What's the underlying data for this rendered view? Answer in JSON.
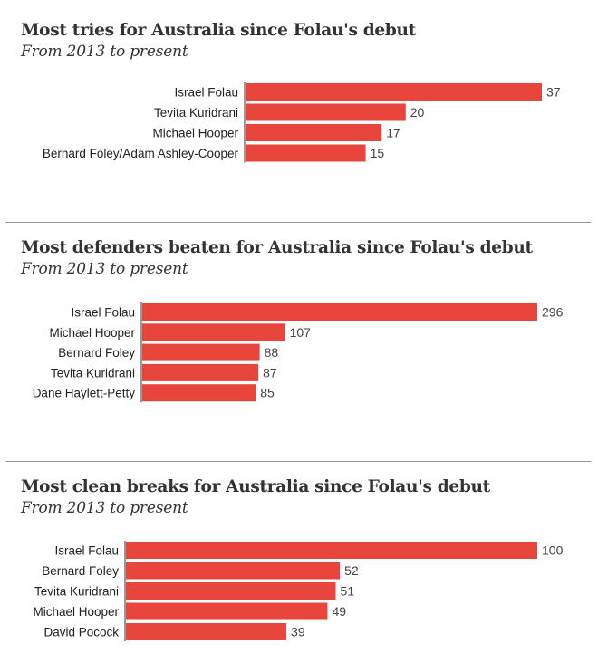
{
  "chart_data": [
    {
      "type": "bar",
      "orientation": "horizontal",
      "title": "Most tries for Australia since Folau's debut",
      "subtitle": "From 2013 to present",
      "categories": [
        "Israel Folau",
        "Tevita Kuridrani",
        "Michael Hooper",
        "Bernard Foley/Adam Ashley-Cooper"
      ],
      "values": [
        37,
        20,
        17,
        15
      ],
      "data_labels": [
        "37",
        "20",
        "17",
        "15"
      ],
      "xlim": [
        0,
        37
      ],
      "bar_color": "#e8453c",
      "grid": false
    },
    {
      "type": "bar",
      "orientation": "horizontal",
      "title": "Most defenders beaten for Australia since Folau's debut",
      "subtitle": "From 2013 to present",
      "categories": [
        "Israel Folau",
        "Michael Hooper",
        "Bernard Foley",
        "Tevita Kuridrani",
        "Dane Haylett-Petty"
      ],
      "values": [
        296,
        107,
        88,
        87,
        85
      ],
      "data_labels": [
        "296",
        "107",
        "88",
        "87",
        "85"
      ],
      "xlim": [
        0,
        296
      ],
      "bar_color": "#e8453c",
      "grid": false
    },
    {
      "type": "bar",
      "orientation": "horizontal",
      "title": "Most clean breaks for Australia since Folau's debut",
      "subtitle": "From 2013 to present",
      "categories": [
        "Israel Folau",
        "Bernard Foley",
        "Tevita Kuridrani",
        "Michael Hooper",
        "David Pocock"
      ],
      "values": [
        100,
        52,
        51,
        49,
        39
      ],
      "data_labels": [
        "100",
        "52",
        "51",
        "49",
        "39"
      ],
      "xlim": [
        0,
        100
      ],
      "bar_color": "#e8453c",
      "grid": false
    }
  ]
}
